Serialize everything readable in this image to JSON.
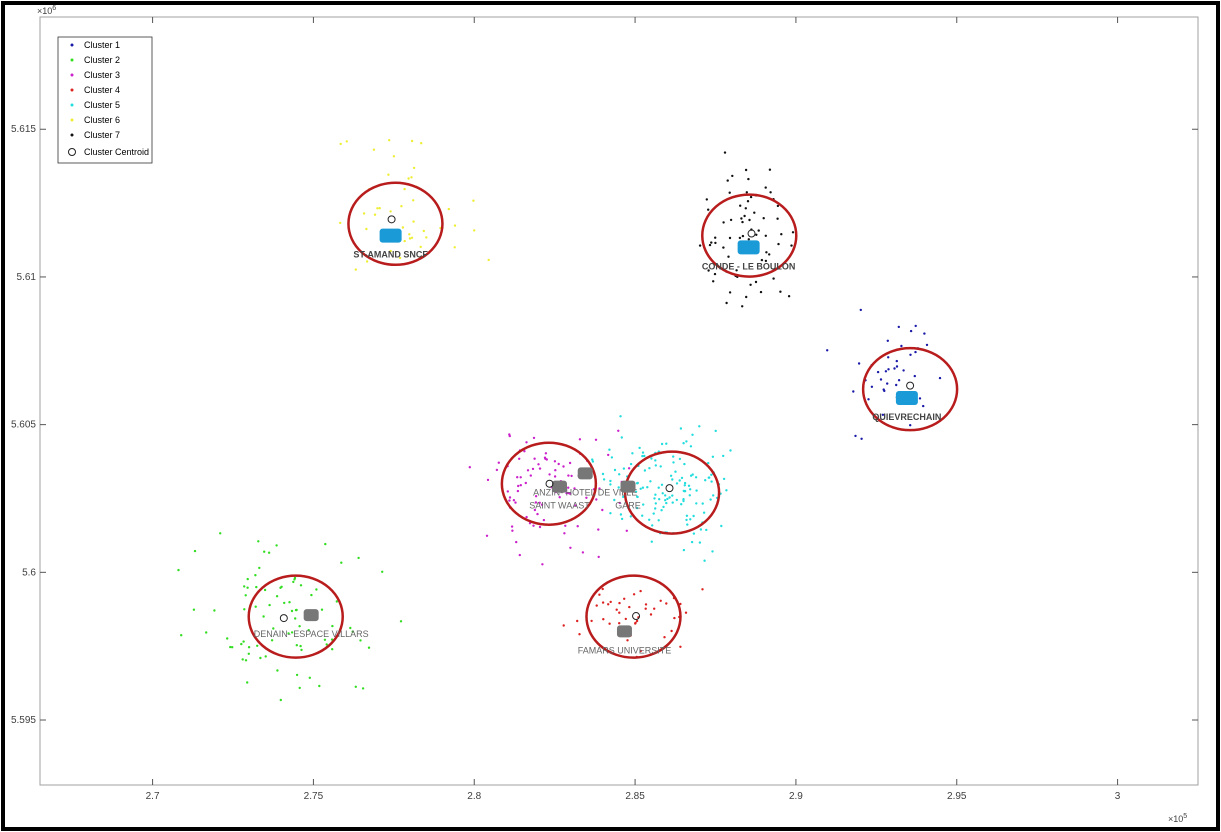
{
  "chart_data": {
    "type": "scatter",
    "title": "",
    "xlabel": "",
    "ylabel": "",
    "x_exponent_label": "×10",
    "x_exponent_power": "5",
    "y_exponent_label": "×10",
    "y_exponent_power": "6",
    "xlim": [
      2.665,
      3.025
    ],
    "ylim": [
      5.5928,
      5.6188
    ],
    "xticks": [
      2.7,
      2.75,
      2.8,
      2.85,
      2.9,
      2.95,
      3
    ],
    "xtick_labels": [
      "2.7",
      "2.75",
      "2.8",
      "2.85",
      "2.9",
      "2.95",
      "3"
    ],
    "yticks": [
      5.595,
      5.6,
      5.605,
      5.61,
      5.615
    ],
    "ytick_labels": [
      "5.595",
      "5.6",
      "5.605",
      "5.61",
      "5.615"
    ],
    "grid": false,
    "legend_position": "top-left",
    "series": [
      {
        "name": "Cluster 1",
        "color": "#1a1aa8",
        "spread": [
          0.02,
          0.002
        ],
        "x": [
          2.93
        ],
        "y": [
          5.6065
        ],
        "n": 42
      },
      {
        "name": "Cluster 2",
        "color": "#33dd22",
        "spread": [
          0.026,
          0.0022
        ],
        "x": [
          2.74
        ],
        "y": [
          5.5985
        ],
        "n": 85
      },
      {
        "name": "Cluster 3",
        "color": "#cc22cc",
        "spread": [
          0.02,
          0.0018
        ],
        "x": [
          2.823
        ],
        "y": [
          5.603
        ],
        "n": 95
      },
      {
        "name": "Cluster 4",
        "color": "#dd2222",
        "spread": [
          0.016,
          0.0012
        ],
        "x": [
          2.85
        ],
        "y": [
          5.5985
        ],
        "n": 45
      },
      {
        "name": "Cluster 5",
        "color": "#22dddd",
        "spread": [
          0.018,
          0.0018
        ],
        "x": [
          2.86
        ],
        "y": [
          5.6028
        ],
        "n": 150
      },
      {
        "name": "Cluster 6",
        "color": "#eeee33",
        "spread": [
          0.022,
          0.0022
        ],
        "x": [
          2.775
        ],
        "y": [
          5.612
        ],
        "n": 45
      },
      {
        "name": "Cluster 7",
        "color": "#111111",
        "spread": [
          0.014,
          0.0025
        ],
        "x": [
          2.885
        ],
        "y": [
          5.6115
        ],
        "n": 70
      }
    ],
    "centroid_legend": "Cluster Centroid",
    "centroids": [
      {
        "x": 2.7743,
        "y": 5.61195
      },
      {
        "x": 2.8862,
        "y": 5.61147
      },
      {
        "x": 2.9355,
        "y": 5.60632
      },
      {
        "x": 2.8234,
        "y": 5.603
      },
      {
        "x": 2.8607,
        "y": 5.60285
      },
      {
        "x": 2.7408,
        "y": 5.59845
      },
      {
        "x": 2.8503,
        "y": 5.59852
      }
    ],
    "stations": [
      {
        "label": "ST-AMAND SNCF",
        "x": 2.774,
        "y": 5.6114,
        "color": "#1a9ad6"
      },
      {
        "label": "CONDE - LE BOULON",
        "x": 2.8853,
        "y": 5.611,
        "color": "#1a9ad6"
      },
      {
        "label": "QUIEVRECHAIN",
        "x": 2.9345,
        "y": 5.6059,
        "color": "#1a9ad6"
      },
      {
        "label": "ANZIN- HOTEL DE VILLE",
        "x": 2.8345,
        "y": 5.60335,
        "color": "#777777"
      },
      {
        "label": "SAINT WAAST",
        "x": 2.8265,
        "y": 5.6029,
        "color": "#777777"
      },
      {
        "label": "GARE",
        "x": 2.8478,
        "y": 5.6029,
        "color": "#777777"
      },
      {
        "label": "DENAIN- ESPACE VILLARS",
        "x": 2.7493,
        "y": 5.59855,
        "color": "#777777"
      },
      {
        "label": "FAMARS UNIVERSITE",
        "x": 2.8467,
        "y": 5.598,
        "color": "#777777"
      }
    ],
    "highlight_circles": [
      {
        "x": 2.7755,
        "y": 5.6118
      },
      {
        "x": 2.8855,
        "y": 5.6114
      },
      {
        "x": 2.9355,
        "y": 5.6062
      },
      {
        "x": 2.8232,
        "y": 5.603
      },
      {
        "x": 2.8615,
        "y": 5.6027
      },
      {
        "x": 2.7445,
        "y": 5.5985
      },
      {
        "x": 2.8495,
        "y": 5.5985
      }
    ]
  }
}
